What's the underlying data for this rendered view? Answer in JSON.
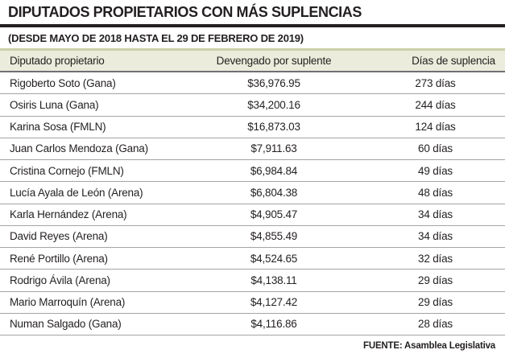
{
  "header": {
    "title": "DIPUTADOS PROPIETARIOS CON MÁS SUPLENCIAS",
    "subtitle": "(DESDE MAYO DE 2018 HASTA EL 29 DE FEBRERO DE 2019)"
  },
  "table": {
    "columns": [
      "Diputado propietario",
      "Devengado por suplente",
      "Días de suplencia"
    ],
    "rows": [
      [
        "Rigoberto Soto (Gana)",
        "$36,976.95",
        "273 días"
      ],
      [
        "Osiris Luna (Gana)",
        "$34,200.16",
        "244 días"
      ],
      [
        "Karina Sosa (FMLN)",
        "$16,873.03",
        "124 días"
      ],
      [
        "Juan Carlos Mendoza (Gana)",
        "$7,911.63",
        "60 días"
      ],
      [
        "Cristina Cornejo (FMLN)",
        "$6,984.84",
        "49 días"
      ],
      [
        "Lucía Ayala de León (Arena)",
        "$6,804.38",
        "48 días"
      ],
      [
        "Karla Hernández (Arena)",
        "$4,905.47",
        "34 días"
      ],
      [
        "David Reyes (Arena)",
        "$4,855.49",
        "34 días"
      ],
      [
        "René Portillo (Arena)",
        "$4,524.65",
        "32 días"
      ],
      [
        "Rodrigo Ávila (Arena)",
        "$4,138.11",
        "29 días"
      ],
      [
        "Mario Marroquín (Arena)",
        "$4,127.42",
        "29 días"
      ],
      [
        "Numan Salgado (Gana)",
        "$4,116.86",
        "28 días"
      ]
    ]
  },
  "footer": {
    "source": "FUENTE: Asamblea Legislativa"
  },
  "colors": {
    "ink": "#231f20",
    "accent_olive_line": "#cbd1a9",
    "header_row_bg": "#ebecdb",
    "header_underline": "#6f7072",
    "row_separator": "#a3a4a6"
  },
  "chart_data": {
    "type": "table",
    "title": "DIPUTADOS PROPIETARIOS CON MÁS SUPLENCIAS",
    "subtitle": "(DESDE MAYO DE 2018 HASTA EL 29 DE FEBRERO DE 2019)",
    "columns": [
      "Diputado propietario",
      "Devengado por suplente",
      "Días de suplencia"
    ],
    "rows": [
      {
        "diputado": "Rigoberto Soto",
        "partido": "Gana",
        "devengado_usd": 36976.95,
        "dias_suplencia": 273
      },
      {
        "diputado": "Osiris Luna",
        "partido": "Gana",
        "devengado_usd": 34200.16,
        "dias_suplencia": 244
      },
      {
        "diputado": "Karina Sosa",
        "partido": "FMLN",
        "devengado_usd": 16873.03,
        "dias_suplencia": 124
      },
      {
        "diputado": "Juan Carlos Mendoza",
        "partido": "Gana",
        "devengado_usd": 7911.63,
        "dias_suplencia": 60
      },
      {
        "diputado": "Cristina Cornejo",
        "partido": "FMLN",
        "devengado_usd": 6984.84,
        "dias_suplencia": 49
      },
      {
        "diputado": "Lucía Ayala de León",
        "partido": "Arena",
        "devengado_usd": 6804.38,
        "dias_suplencia": 48
      },
      {
        "diputado": "Karla Hernández",
        "partido": "Arena",
        "devengado_usd": 4905.47,
        "dias_suplencia": 34
      },
      {
        "diputado": "David Reyes",
        "partido": "Arena",
        "devengado_usd": 4855.49,
        "dias_suplencia": 34
      },
      {
        "diputado": "René Portillo",
        "partido": "Arena",
        "devengado_usd": 4524.65,
        "dias_suplencia": 32
      },
      {
        "diputado": "Rodrigo Ávila",
        "partido": "Arena",
        "devengado_usd": 4138.11,
        "dias_suplencia": 29
      },
      {
        "diputado": "Mario Marroquín",
        "partido": "Arena",
        "devengado_usd": 4127.42,
        "dias_suplencia": 29
      },
      {
        "diputado": "Numan Salgado",
        "partido": "Gana",
        "devengado_usd": 4116.86,
        "dias_suplencia": 28
      }
    ],
    "source": "FUENTE: Asamblea Legislativa"
  }
}
